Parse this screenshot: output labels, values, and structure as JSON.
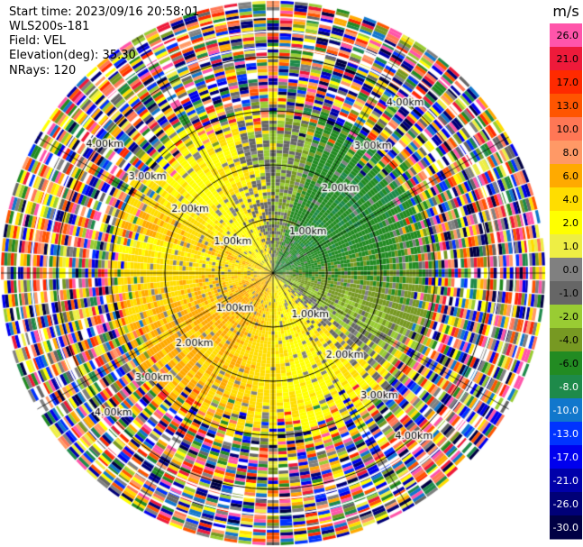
{
  "info": {
    "start_time": "Start time: 2023/09/16 20:58:01",
    "instrument": "WLS200s-181",
    "field": "Field: VEL",
    "elevation": "Elevation(deg): 35.30",
    "nrays": "NRays: 120"
  },
  "colorbar": {
    "unit": "m/s",
    "levels": [
      {
        "label": "26.0",
        "color": "#ff55aa"
      },
      {
        "label": "21.0",
        "color": "#ee1a3a"
      },
      {
        "label": "17.0",
        "color": "#ff2a00"
      },
      {
        "label": "13.0",
        "color": "#ff5500"
      },
      {
        "label": "10.0",
        "color": "#ff7755"
      },
      {
        "label": "8.0",
        "color": "#ff9966"
      },
      {
        "label": "6.0",
        "color": "#ffaa00"
      },
      {
        "label": "4.0",
        "color": "#ffdd00"
      },
      {
        "label": "2.0",
        "color": "#ffff00"
      },
      {
        "label": "1.0",
        "color": "#eeee44"
      },
      {
        "label": "0.0",
        "color": "#808080"
      },
      {
        "label": "-1.0",
        "color": "#666666"
      },
      {
        "label": "-2.0",
        "color": "#99cc33"
      },
      {
        "label": "-4.0",
        "color": "#779922"
      },
      {
        "label": "-6.0",
        "color": "#228b22"
      },
      {
        "label": "-8.0",
        "color": "#1e8a4a"
      },
      {
        "label": "-10.0",
        "color": "#1177cc"
      },
      {
        "label": "-13.0",
        "color": "#0033ff"
      },
      {
        "label": "-17.0",
        "color": "#0000ee"
      },
      {
        "label": "-21.0",
        "color": "#0000aa"
      },
      {
        "label": "-26.0",
        "color": "#000077"
      },
      {
        "label": "-30.0",
        "color": "#000044"
      }
    ]
  },
  "chart_data": {
    "type": "heatmap",
    "projection": "polar PPI",
    "field": "VEL",
    "unit": "m/s",
    "nrays": 120,
    "range_rings_km": [
      1.0,
      2.0,
      3.0,
      4.0
    ],
    "ring_labels": {
      "1.00km": "1.00km",
      "2.00km": "2.00km",
      "3.00km": "3.00km",
      "4.00km": "4.00km"
    },
    "spoke_count": 12,
    "grid": true,
    "colorbar_range": [
      -30.0,
      26.0
    ],
    "dominant_pattern": "positive velocities (yellow/orange) west and north-west, negative velocities (green) south-east, noisy multicolored far ranges"
  }
}
